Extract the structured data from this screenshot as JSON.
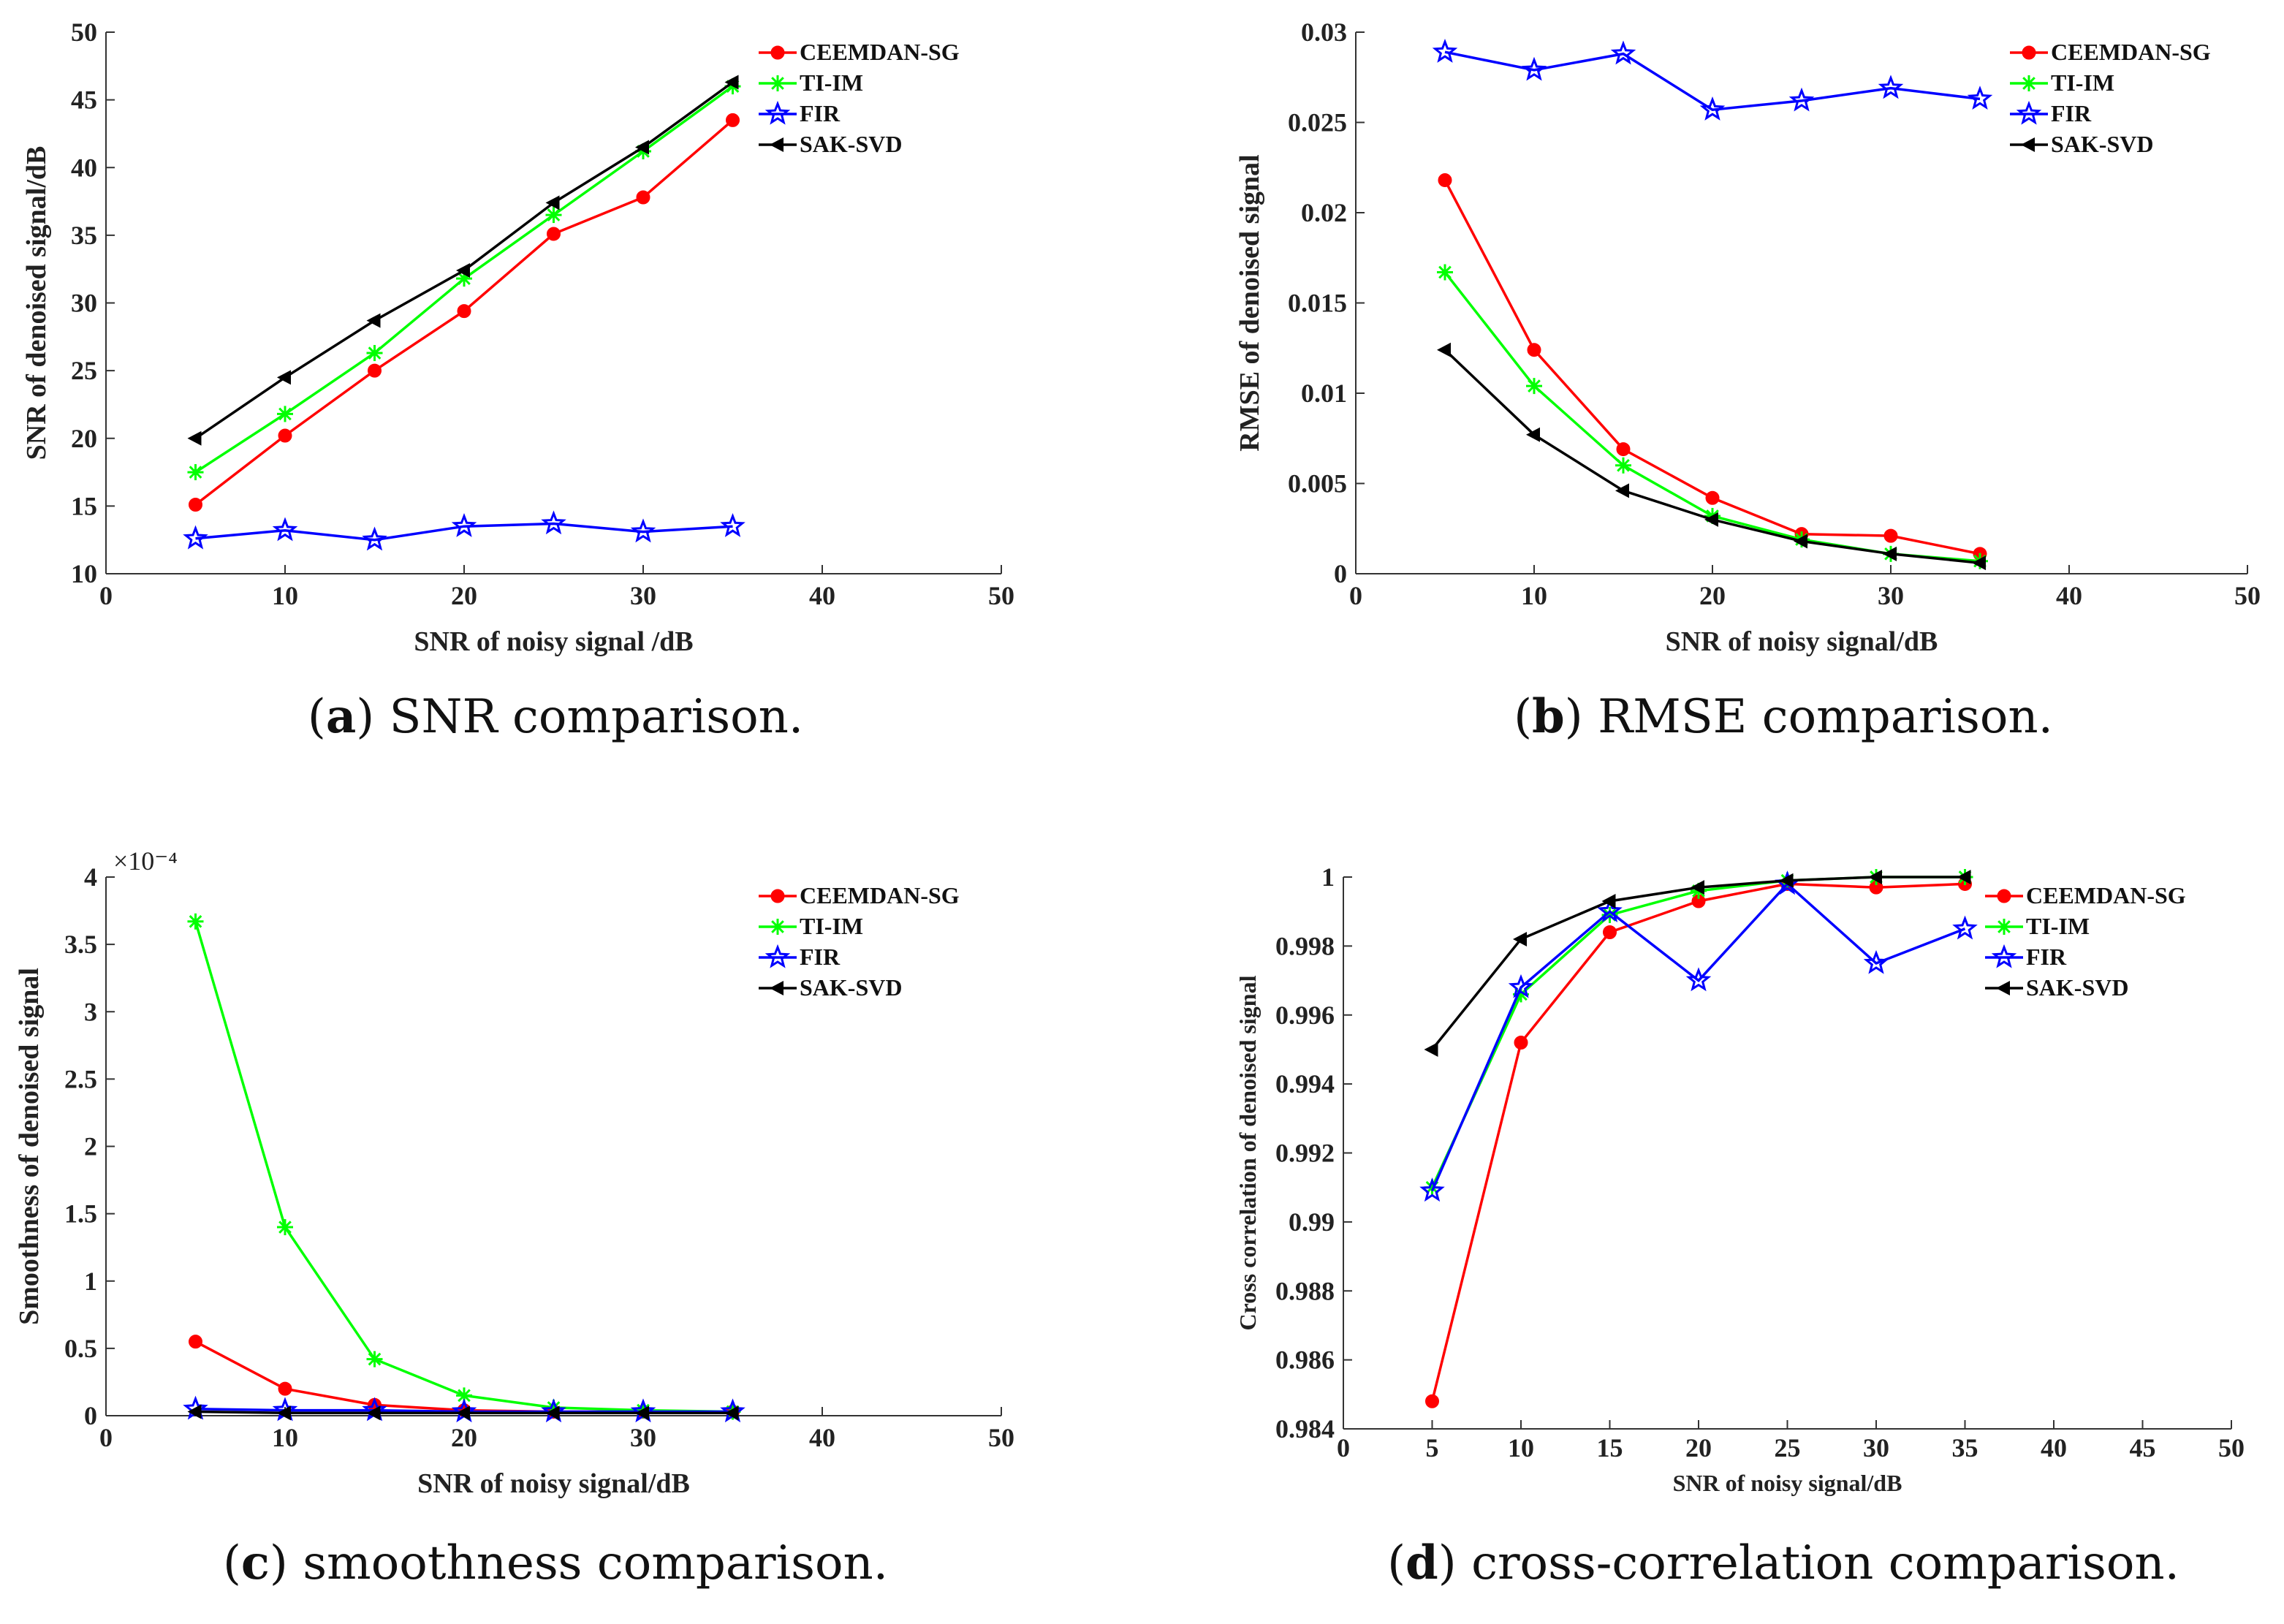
{
  "series_style": [
    {
      "name": "CEEMDAN-SG",
      "color": "#ff0000",
      "marker": "circle"
    },
    {
      "name": "TI-IM",
      "color": "#00ff00",
      "marker": "asterisk"
    },
    {
      "name": "FIR",
      "color": "#0000ff",
      "marker": "star"
    },
    {
      "name": "SAK-SVD",
      "color": "#000000",
      "marker": "triangle-left"
    }
  ],
  "chart_data": [
    {
      "id": "a",
      "type": "line",
      "ylabel": "SNR of denoised signal/dB",
      "xlabel": "SNR of noisy signal /dB",
      "xlim": [
        0,
        50
      ],
      "ylim": [
        10,
        50
      ],
      "xticks": [
        "0",
        "10",
        "20",
        "30",
        "40",
        "50"
      ],
      "yticks": [
        "10",
        "15",
        "20",
        "25",
        "30",
        "35",
        "40",
        "45",
        "50"
      ],
      "caption_letter": "a",
      "caption_text": "SNR comparison.",
      "x": [
        5,
        10,
        15,
        20,
        25,
        30,
        35
      ],
      "series": [
        {
          "name": "CEEMDAN-SG",
          "values": [
            15.1,
            20.2,
            25.0,
            29.4,
            35.1,
            37.8,
            43.5
          ]
        },
        {
          "name": "TI-IM",
          "values": [
            17.5,
            21.8,
            26.3,
            31.8,
            36.5,
            41.2,
            46.0
          ]
        },
        {
          "name": "FIR",
          "values": [
            12.6,
            13.2,
            12.5,
            13.5,
            13.7,
            13.1,
            13.5
          ]
        },
        {
          "name": "SAK-SVD",
          "values": [
            20.0,
            24.5,
            28.7,
            32.4,
            37.4,
            41.5,
            46.3
          ]
        }
      ]
    },
    {
      "id": "b",
      "type": "line",
      "ylabel": "RMSE of denoised signal",
      "xlabel": "SNR of noisy signal/dB",
      "xlim": [
        0,
        50
      ],
      "ylim": [
        0,
        0.03
      ],
      "xticks": [
        "0",
        "10",
        "20",
        "30",
        "40",
        "50"
      ],
      "yticks": [
        "0",
        "0.005",
        "0.01",
        "0.015",
        "0.02",
        "0.025",
        "0.03"
      ],
      "caption_letter": "b",
      "caption_text": "RMSE comparison.",
      "x": [
        5,
        10,
        15,
        20,
        25,
        30,
        35
      ],
      "series": [
        {
          "name": "CEEMDAN-SG",
          "values": [
            0.0218,
            0.0124,
            0.0069,
            0.0042,
            0.0022,
            0.0021,
            0.0011
          ]
        },
        {
          "name": "TI-IM",
          "values": [
            0.0167,
            0.0104,
            0.006,
            0.0032,
            0.0019,
            0.0011,
            0.0007
          ]
        },
        {
          "name": "FIR",
          "values": [
            0.0289,
            0.0279,
            0.0288,
            0.0257,
            0.0262,
            0.0269,
            0.0263
          ]
        },
        {
          "name": "SAK-SVD",
          "values": [
            0.0124,
            0.0077,
            0.0046,
            0.003,
            0.0018,
            0.0011,
            0.0006
          ]
        }
      ]
    },
    {
      "id": "c",
      "type": "line",
      "ylabel": "Smoothness of denoised signal",
      "xlabel": "SNR of noisy signal/dB",
      "xlim": [
        0,
        50
      ],
      "ylim": [
        0,
        4
      ],
      "y_multiplier": "×10⁻⁴",
      "xticks": [
        "0",
        "10",
        "20",
        "30",
        "40",
        "50"
      ],
      "yticks": [
        "0",
        "0.5",
        "1",
        "1.5",
        "2",
        "2.5",
        "3",
        "3.5",
        "4"
      ],
      "caption_letter": "c",
      "caption_text": "smoothness comparison.",
      "x": [
        5,
        10,
        15,
        20,
        25,
        30,
        35
      ],
      "series": [
        {
          "name": "CEEMDAN-SG",
          "values": [
            0.55,
            0.2,
            0.08,
            0.04,
            0.03,
            0.03,
            0.03
          ]
        },
        {
          "name": "TI-IM",
          "values": [
            3.67,
            1.4,
            0.42,
            0.15,
            0.06,
            0.04,
            0.03
          ]
        },
        {
          "name": "FIR",
          "values": [
            0.05,
            0.04,
            0.04,
            0.03,
            0.03,
            0.03,
            0.03
          ]
        },
        {
          "name": "SAK-SVD",
          "values": [
            0.03,
            0.02,
            0.02,
            0.02,
            0.02,
            0.02,
            0.02
          ]
        }
      ]
    },
    {
      "id": "d",
      "type": "line",
      "ylabel": "Cross correlation of denoised signal",
      "xlabel": "SNR of noisy signal/dB",
      "xlim": [
        0,
        50
      ],
      "ylim": [
        0.984,
        1
      ],
      "xticks": [
        "0",
        "5",
        "10",
        "15",
        "20",
        "25",
        "30",
        "35",
        "40",
        "45",
        "50"
      ],
      "yticks": [
        "0.984",
        "0.986",
        "0.988",
        "0.99",
        "0.992",
        "0.994",
        "0.996",
        "0.998",
        "1"
      ],
      "caption_letter": "d",
      "caption_text": "cross-correlation comparison.",
      "x": [
        5,
        10,
        15,
        20,
        25,
        30,
        35
      ],
      "series": [
        {
          "name": "CEEMDAN-SG",
          "values": [
            0.9848,
            0.9952,
            0.9984,
            0.9993,
            0.9998,
            0.9997,
            0.9998
          ]
        },
        {
          "name": "TI-IM",
          "values": [
            0.991,
            0.9966,
            0.9989,
            0.9996,
            0.9999,
            1.0,
            1.0
          ]
        },
        {
          "name": "FIR",
          "values": [
            0.9909,
            0.9968,
            0.999,
            0.997,
            0.9998,
            0.9975,
            0.9985
          ]
        },
        {
          "name": "SAK-SVD",
          "values": [
            0.995,
            0.9982,
            0.9993,
            0.9997,
            0.9999,
            1.0,
            1.0
          ]
        }
      ]
    }
  ]
}
